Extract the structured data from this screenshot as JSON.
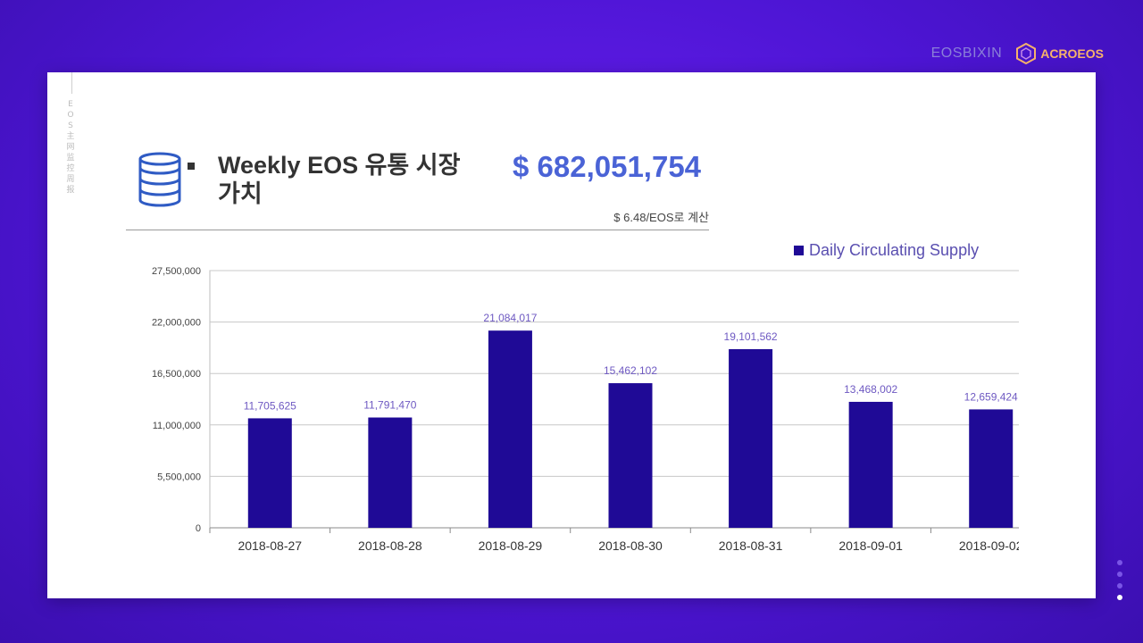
{
  "brand": {
    "left_label": "EOSBIXIN",
    "logo_text": "ACROEOS"
  },
  "sidebar_vertical_text": "EOS主网监控周报",
  "header": {
    "bullet_title": "Weekly EOS 유통 시장 가치",
    "market_value": "$ 682,051,754",
    "rate_note": "$ 6.48/EOS로 계산"
  },
  "colors": {
    "bar": "#1f0a96",
    "value_label": "#6e59c2",
    "headline_value": "#4a63d6"
  },
  "chart_data": {
    "type": "bar",
    "categories": [
      "2018-08-27",
      "2018-08-28",
      "2018-08-29",
      "2018-08-30",
      "2018-08-31",
      "2018-09-01",
      "2018-09-02"
    ],
    "series": [
      {
        "name": "Daily Circulating Supply",
        "values": [
          11705625,
          11791470,
          21084017,
          15462102,
          19101562,
          13468002,
          12659424
        ],
        "labels": [
          "11,705,625",
          "11,791,470",
          "21,084,017",
          "15,462,102",
          "19,101,562",
          "13,468,002",
          "12,659,424"
        ]
      }
    ],
    "ylim": [
      0,
      27500000
    ],
    "yticks": [
      0,
      5500000,
      11000000,
      16500000,
      22000000,
      27500000
    ],
    "ytick_labels": [
      "0",
      "5,500,000",
      "11,000,000",
      "16,500,000",
      "22,000,000",
      "27,500,000"
    ],
    "grid": true,
    "legend": "top-right"
  },
  "pagination": {
    "total": 4,
    "active": 4
  }
}
